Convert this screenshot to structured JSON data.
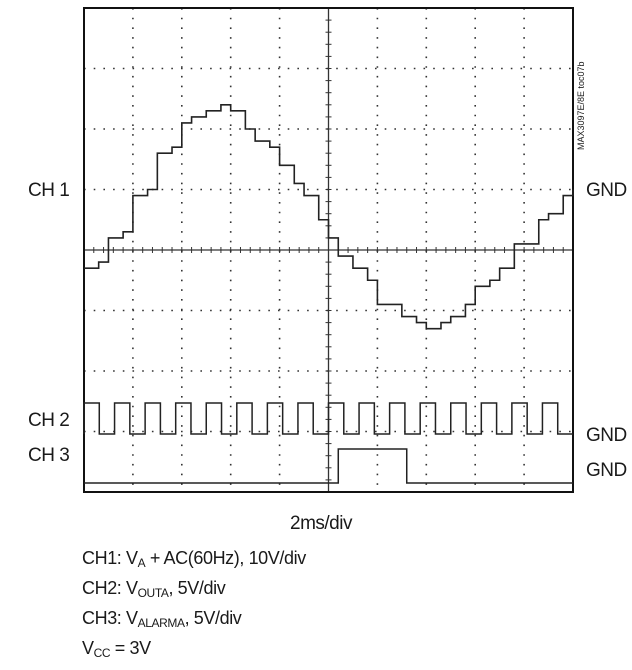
{
  "chart_data": {
    "type": "line",
    "title": "",
    "figure_id": "MAX3097E/8E toc07b",
    "grid": {
      "divisions_x": 10,
      "divisions_y": 8,
      "on": true
    },
    "channel_labels": {
      "ch1": "CH 1",
      "ch2": "CH 2",
      "ch3": "CH 3"
    },
    "ground_labels": [
      "GND",
      "GND",
      "GND"
    ],
    "timebase": "2ms/div",
    "captions": {
      "ch1_prefix": "CH1: V",
      "ch1_sub": "A",
      "ch1_suffix": " + AC(60Hz), 10V/div",
      "ch2_prefix": "CH2: V",
      "ch2_sub": "OUTA",
      "ch2_suffix": ", 5V/div",
      "ch3_prefix": "CH3: V",
      "ch3_sub": "ALARMA",
      "ch3_suffix": ", 5V/div",
      "vcc_prefix": "V",
      "vcc_sub": "CC",
      "vcc_suffix": " = 3V"
    },
    "series": [
      {
        "id": "ch1",
        "units": "div",
        "x": [
          0,
          0.3,
          0.5,
          0.8,
          1.0,
          1.3,
          1.5,
          1.8,
          2.0,
          2.2,
          2.5,
          2.8,
          3.0,
          3.3,
          3.5,
          3.8,
          4.0,
          4.3,
          4.5,
          4.8,
          5.0,
          5.2,
          5.5,
          5.8,
          6.0,
          6.3,
          6.5,
          6.8,
          7.0,
          7.3,
          7.5,
          7.8,
          8.0,
          8.3,
          8.5,
          8.8,
          9.0,
          9.3,
          9.5,
          9.8,
          10
        ],
        "y": [
          -0.3,
          -0.2,
          0.2,
          0.3,
          0.9,
          1.0,
          1.6,
          1.7,
          2.1,
          2.2,
          2.3,
          2.4,
          2.3,
          2.0,
          1.8,
          1.7,
          1.4,
          1.1,
          0.9,
          0.5,
          0.2,
          -0.1,
          -0.3,
          -0.5,
          -0.9,
          -0.9,
          -1.1,
          -1.2,
          -1.3,
          -1.2,
          -1.1,
          -0.9,
          -0.6,
          -0.5,
          -0.3,
          0.1,
          0.1,
          0.5,
          0.6,
          0.9,
          1.0
        ]
      },
      {
        "id": "ch2",
        "units": "logic",
        "periods": 16,
        "duty": 0.5
      },
      {
        "id": "ch3",
        "units": "logic",
        "high_from_div": 5.2,
        "high_to_div": 6.6
      }
    ]
  },
  "colors": {
    "trace": "#222222",
    "grid": "#333333",
    "frame": "#111111"
  }
}
